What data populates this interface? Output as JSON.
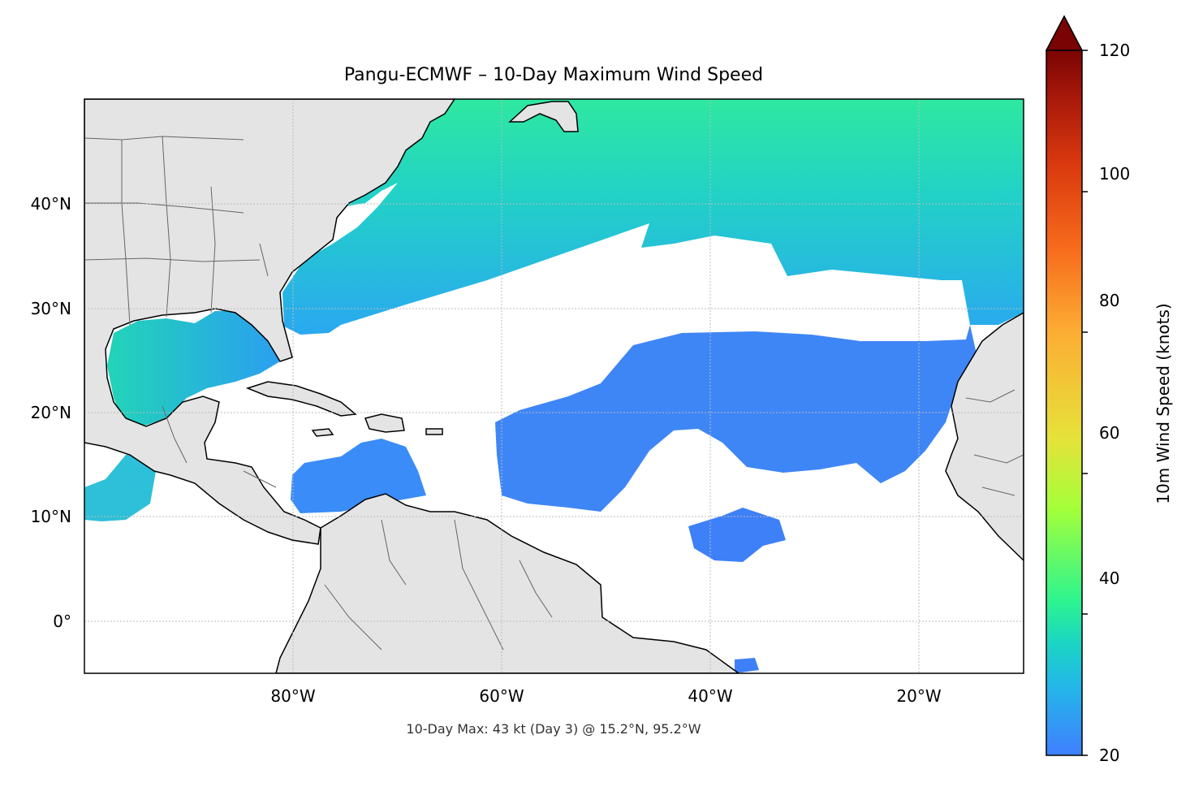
{
  "title": "Pangu-ECMWF – 10-Day Maximum Wind Speed",
  "footnote": "10-Day Max: 43 kt (Day 3) @ 15.2°N, 95.2°W",
  "lat_ticks": [
    "40°N",
    "30°N",
    "20°N",
    "10°N",
    "0°"
  ],
  "lon_ticks": [
    "80°W",
    "60°W",
    "40°W",
    "20°W"
  ],
  "extent": {
    "lon_min": -100,
    "lon_max": -10,
    "lat_min": -5,
    "lat_max": 50
  },
  "colorbar": {
    "label": "10m Wind Speed (knots)",
    "ticks": [
      "20",
      "40",
      "60",
      "80",
      "100",
      "120"
    ],
    "min": 20,
    "max": 120,
    "extend": "max",
    "colors": [
      "#3f7fff",
      "#23b8e8",
      "#1bd6c2",
      "#2ef48f",
      "#a4ff3a",
      "#e6e23a",
      "#fcad34",
      "#f76b1c",
      "#d9380e",
      "#a3160a",
      "#7a0403"
    ]
  },
  "colors": {
    "land": "#e4e4e4",
    "coast": "#000000",
    "borders": "#666666",
    "grid": "#bbbbbb"
  }
}
